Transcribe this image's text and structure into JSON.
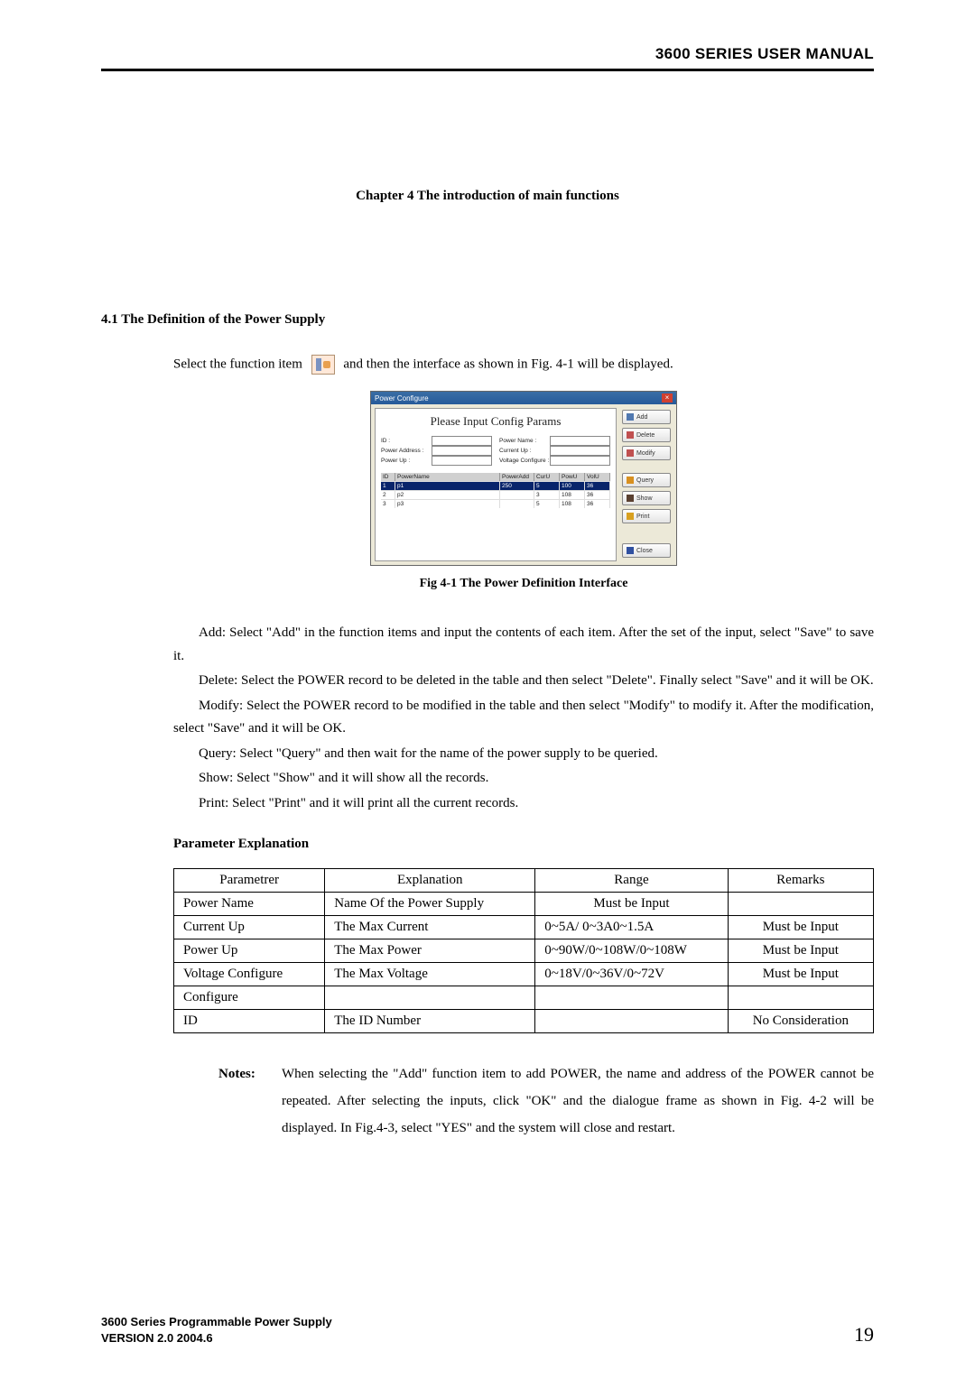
{
  "header": {
    "title": "3600 SERIES USER MANUAL"
  },
  "chapter": {
    "label": "Chapter 4    The introduction of main functions"
  },
  "section": {
    "num_title": "4.1 The Definition of the Power Supply"
  },
  "intro": {
    "before": "Select the function item",
    "after": "and then the interface as shown in Fig. 4-1 will be displayed."
  },
  "screenshot": {
    "titlebar": "Power Configure",
    "heading": "Please Input Config Params",
    "labels": {
      "id": "ID :",
      "power_name": "Power Name :",
      "power_address": "Power Address :",
      "current_up": "Current Up :",
      "power_up": "Power Up :",
      "voltage_cfg": "Voltage Configure :"
    },
    "grid_cols": [
      "ID",
      "PowerName",
      "PowerAdd",
      "CurU",
      "PowU",
      "VolU"
    ],
    "rows": [
      {
        "id": "1",
        "name": "p1",
        "pa": "250",
        "cu": "5",
        "pu": "100",
        "vu": "36"
      },
      {
        "id": "2",
        "name": "p2",
        "pa": "",
        "cu": "3",
        "pu": "108",
        "vu": "36"
      },
      {
        "id": "3",
        "name": "p3",
        "pa": "",
        "cu": "5",
        "pu": "108",
        "vu": "36"
      }
    ],
    "buttons": {
      "add": "Add",
      "delete": "Delete",
      "modify": "Modify",
      "query": "Query",
      "show": "Show",
      "print": "Print",
      "close": "Close"
    }
  },
  "fig_caption": "Fig 4-1 The Power Definition Interface",
  "ops": {
    "add": "Add:   Select \"Add\" in the function items and input the contents of each item. After the set  of the input, select \"Save\" to save it.",
    "delete": "Delete: Select the POWER record to be deleted in the table and then select \"Delete\". Finally select \"Save\" and it will be OK.",
    "modify": "Modify: Select the POWER record to be modified in the table and then select \"Modify\" to modify it. After the modification, select \"Save\" and it will be OK.",
    "query": "Query:  Select \"Query\" and then wait for the name of the power supply to be queried.",
    "show": "Show:  Select \"Show\" and it will show all the records.",
    "print": "Print:   Select \"Print\" and it will print all the current records."
  },
  "param_heading": "Parameter Explanation",
  "table": {
    "columns": [
      "Parametrer",
      "Explanation",
      "Range",
      "Remarks"
    ],
    "rows": [
      [
        "Power Name",
        "Name Of the Power Supply",
        "Must be Input",
        ""
      ],
      [
        "Current Up",
        "The Max Current",
        "0~5A/ 0~3A0~1.5A",
        "Must be Input"
      ],
      [
        "Power Up",
        "The Max Power",
        "0~90W/0~108W/0~108W",
        "Must be Input"
      ],
      [
        "Voltage Configure",
        "The Max Voltage",
        "0~18V/0~36V/0~72V",
        "Must be Input"
      ],
      [
        "Configure",
        "",
        "",
        ""
      ],
      [
        "ID",
        "The ID Number",
        "",
        "No Consideration"
      ]
    ],
    "center_range_rows": [
      0
    ]
  },
  "notes": {
    "label": "Notes:",
    "text": "When selecting the \"Add\" function item to add POWER, the name and address of the POWER cannot be repeated. After selecting the inputs, click \"OK\" and the dialogue frame as shown in Fig. 4-2 will be displayed. In Fig.4-3, select \"YES\" and the system will close and restart."
  },
  "footer": {
    "line1": "3600 Series Programmable Power Supply",
    "line2": "VERSION 2.0  2004.6",
    "page": "19"
  }
}
